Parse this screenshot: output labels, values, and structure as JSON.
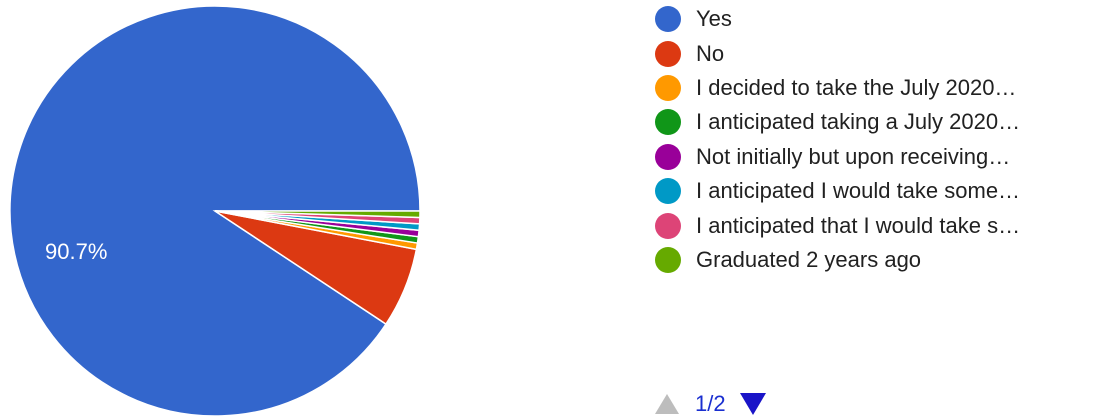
{
  "chart_data": {
    "type": "pie",
    "slices": [
      {
        "label": "Yes",
        "value": 90.7,
        "color": "#3366cc"
      },
      {
        "label": "No",
        "value": 6.3,
        "color": "#dc3912"
      },
      {
        "label": "I decided to take the July 2020…",
        "value": 0.5,
        "color": "#ff9900"
      },
      {
        "label": "I anticipated taking a July 2020…",
        "value": 0.5,
        "color": "#109618"
      },
      {
        "label": "Not initially but upon receiving…",
        "value": 0.5,
        "color": "#990099"
      },
      {
        "label": "I anticipated I would take some…",
        "value": 0.5,
        "color": "#0099c6"
      },
      {
        "label": "I anticipated that I would take s…",
        "value": 0.5,
        "color": "#dd4477"
      },
      {
        "label": "Graduated 2 years ago",
        "value": 0.5,
        "color": "#66aa00"
      }
    ],
    "data_labels": [
      "90.7%"
    ],
    "legend_position": "right"
  },
  "pager": {
    "text": "1/2"
  }
}
